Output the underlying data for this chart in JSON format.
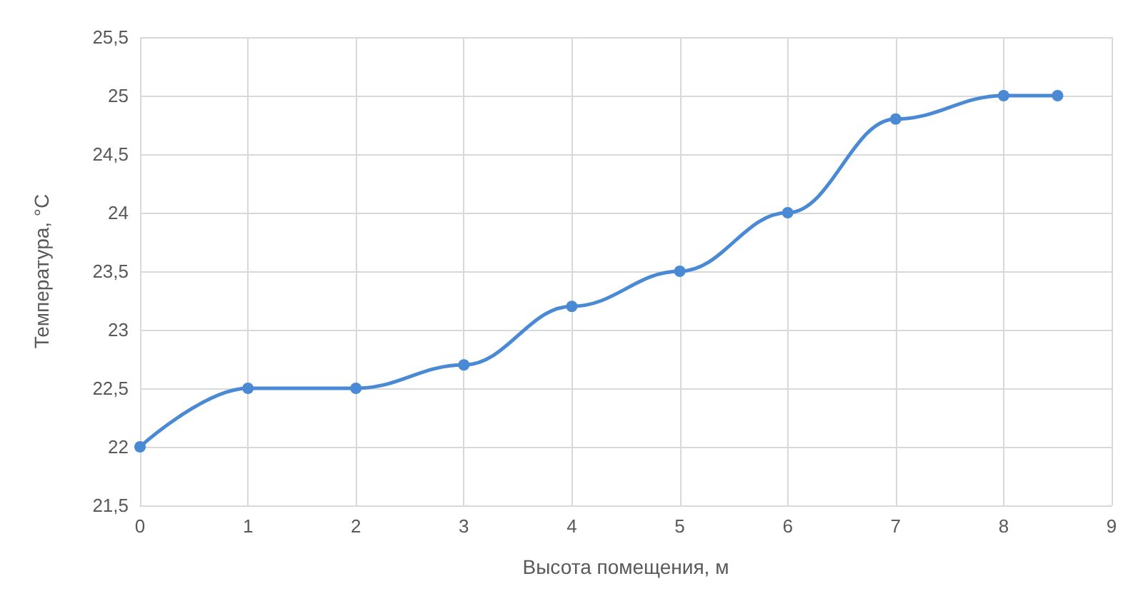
{
  "chart_data": {
    "type": "line",
    "xlabel": "Высота помещения, м",
    "ylabel": "Температура, °С",
    "x": [
      0,
      1,
      2,
      3,
      4,
      5,
      6,
      7,
      8,
      8.5
    ],
    "series": [
      {
        "color": "#4a8ad4",
        "values": [
          22,
          22.5,
          22.5,
          22.7,
          23.2,
          23.5,
          24,
          24.8,
          25,
          25
        ]
      }
    ],
    "xlim": [
      0,
      9
    ],
    "xticks": [
      0,
      1,
      2,
      3,
      4,
      5,
      6,
      7,
      8,
      9
    ],
    "ylim": [
      21.5,
      25.5
    ],
    "yticks": [
      {
        "value": 21.5,
        "label": "21,5"
      },
      22,
      {
        "value": 22.5,
        "label": "22,5"
      },
      23,
      {
        "value": 23.5,
        "label": "23,5"
      },
      24,
      {
        "value": 24.5,
        "label": "24,5"
      },
      25,
      {
        "value": 25.5,
        "label": "25,5"
      }
    ],
    "grid": true,
    "marker": "circle",
    "line_style": "solid"
  }
}
